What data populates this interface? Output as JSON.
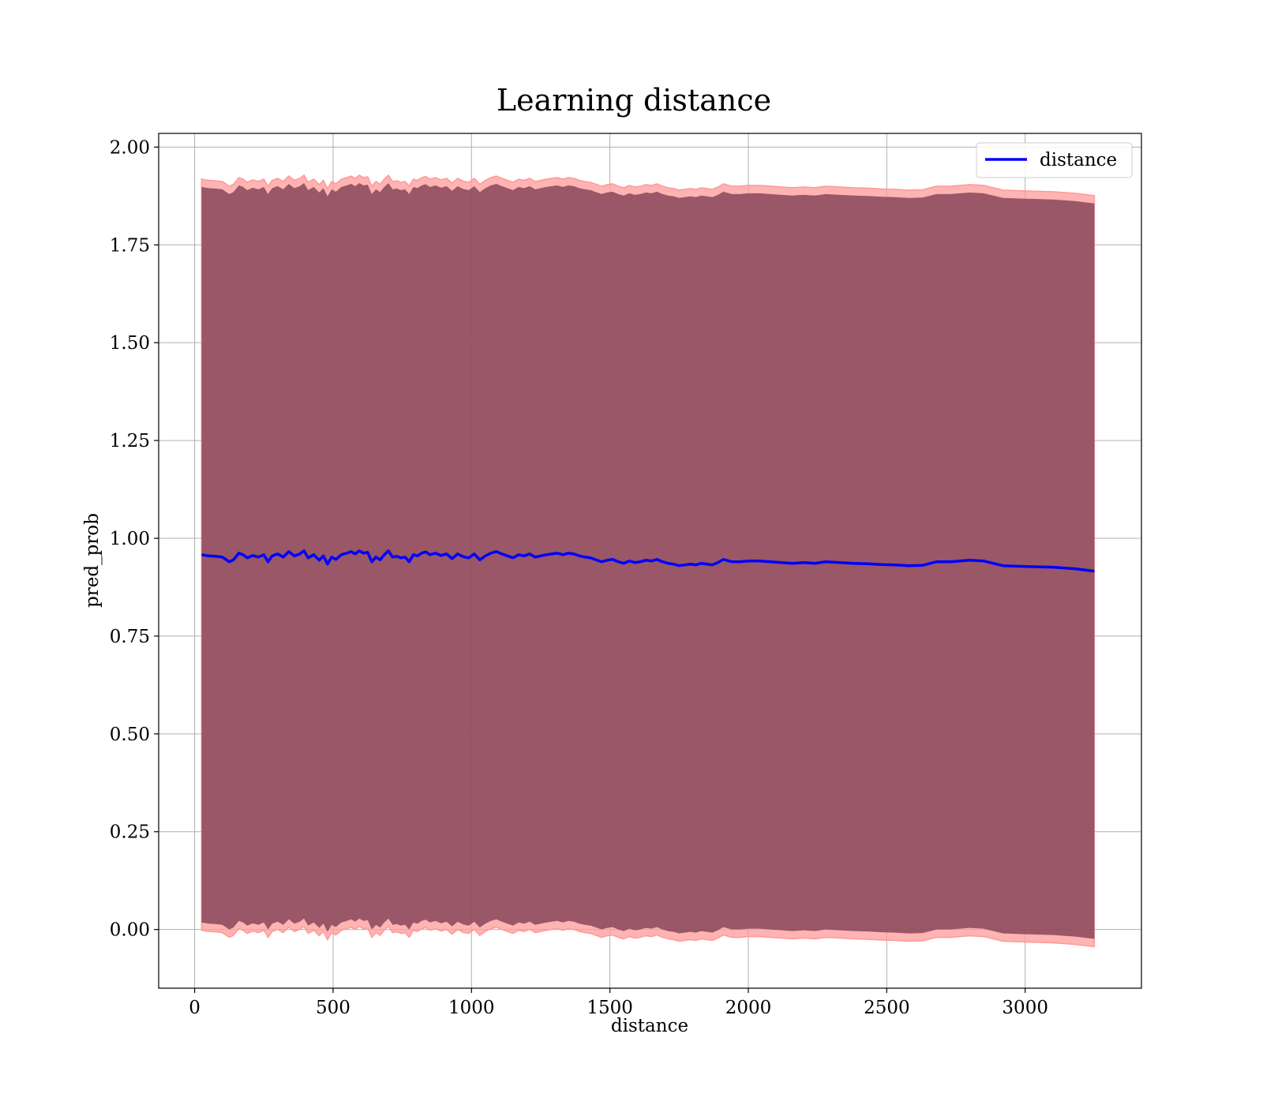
{
  "chart_data": {
    "type": "line",
    "title": "Learning distance",
    "xlabel": "distance",
    "ylabel": "pred_prob",
    "xlim": [
      -130,
      3420
    ],
    "ylim": [
      -0.15,
      2.035
    ],
    "grid": true,
    "legend_position": "upper right",
    "xticks": [
      "0",
      "500",
      "1000",
      "1500",
      "2000",
      "2500",
      "3000"
    ],
    "xtick_values": [
      0,
      500,
      1000,
      1500,
      2000,
      2500,
      3000
    ],
    "yticks": [
      "0.00",
      "0.25",
      "0.50",
      "0.75",
      "1.00",
      "1.25",
      "1.50",
      "1.75",
      "2.00"
    ],
    "ytick_values": [
      0,
      0.25,
      0.5,
      0.75,
      1.0,
      1.25,
      1.5,
      1.75,
      2.0
    ],
    "series": [
      {
        "name": "distance",
        "color": "#0000ff",
        "x": [
          25,
          50,
          75,
          100,
          125,
          140,
          160,
          175,
          190,
          210,
          230,
          250,
          265,
          280,
          300,
          320,
          340,
          360,
          380,
          395,
          410,
          430,
          450,
          465,
          480,
          495,
          510,
          530,
          550,
          565,
          580,
          595,
          610,
          625,
          640,
          655,
          670,
          685,
          700,
          715,
          730,
          745,
          760,
          775,
          790,
          805,
          820,
          835,
          850,
          870,
          890,
          910,
          930,
          950,
          970,
          990,
          1010,
          1030,
          1050,
          1070,
          1090,
          1110,
          1130,
          1150,
          1170,
          1190,
          1210,
          1230,
          1250,
          1270,
          1290,
          1310,
          1330,
          1350,
          1370,
          1390,
          1410,
          1430,
          1450,
          1470,
          1490,
          1510,
          1530,
          1550,
          1570,
          1590,
          1610,
          1630,
          1650,
          1670,
          1690,
          1710,
          1730,
          1750,
          1770,
          1790,
          1810,
          1830,
          1850,
          1870,
          1890,
          1910,
          1940,
          1970,
          2000,
          2040,
          2080,
          2120,
          2160,
          2200,
          2240,
          2280,
          2330,
          2380,
          2430,
          2480,
          2530,
          2580,
          2630,
          2680,
          2730,
          2800,
          2850,
          2920,
          3000,
          3100,
          3180,
          3250
        ],
        "y": [
          0.958,
          0.955,
          0.954,
          0.952,
          0.94,
          0.945,
          0.962,
          0.958,
          0.95,
          0.956,
          0.952,
          0.958,
          0.94,
          0.955,
          0.96,
          0.952,
          0.966,
          0.955,
          0.96,
          0.968,
          0.95,
          0.958,
          0.944,
          0.955,
          0.934,
          0.952,
          0.946,
          0.958,
          0.962,
          0.966,
          0.96,
          0.968,
          0.962,
          0.964,
          0.94,
          0.952,
          0.945,
          0.958,
          0.968,
          0.952,
          0.954,
          0.95,
          0.952,
          0.94,
          0.958,
          0.955,
          0.962,
          0.965,
          0.958,
          0.962,
          0.956,
          0.96,
          0.948,
          0.96,
          0.953,
          0.95,
          0.96,
          0.945,
          0.955,
          0.962,
          0.966,
          0.96,
          0.955,
          0.95,
          0.958,
          0.955,
          0.96,
          0.952,
          0.955,
          0.958,
          0.96,
          0.962,
          0.958,
          0.962,
          0.96,
          0.955,
          0.952,
          0.95,
          0.945,
          0.94,
          0.944,
          0.946,
          0.94,
          0.936,
          0.942,
          0.938,
          0.94,
          0.944,
          0.942,
          0.946,
          0.94,
          0.936,
          0.934,
          0.93,
          0.932,
          0.934,
          0.932,
          0.936,
          0.934,
          0.932,
          0.938,
          0.946,
          0.94,
          0.94,
          0.942,
          0.942,
          0.94,
          0.938,
          0.936,
          0.938,
          0.936,
          0.94,
          0.938,
          0.936,
          0.935,
          0.933,
          0.932,
          0.93,
          0.931,
          0.94,
          0.94,
          0.944,
          0.942,
          0.93,
          0.928,
          0.926,
          0.922,
          0.916
        ]
      }
    ],
    "band_outer": {
      "color": "#ff9999",
      "upper_offset": 0.96,
      "lower_offset": -0.96
    },
    "band_inner": {
      "color": "#8b4a5c",
      "upper_offset": 0.94,
      "lower_offset": -0.94
    }
  }
}
